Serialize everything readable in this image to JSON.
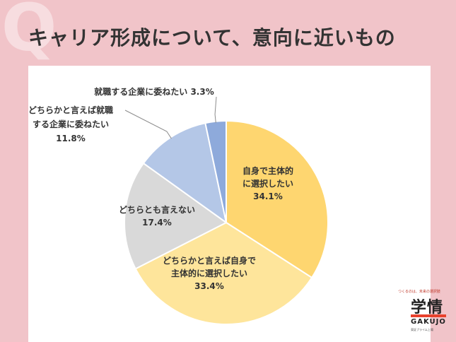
{
  "header": {
    "q_letter": "Q",
    "title": "キャリア形成について、意向に近いもの"
  },
  "logo": {
    "tagline": "つくるのは、未来の選択肢",
    "name": "学情",
    "name_en": "GAKUJO",
    "sub": "東証プライム上場"
  },
  "chart_data": {
    "type": "pie",
    "title": "キャリア形成について、意向に近いもの",
    "start_angle_deg": 0,
    "direction": "clockwise",
    "slices": [
      {
        "label": "自身で主体的に選択したい",
        "lines": [
          "自身で主体的",
          "に選択したい"
        ],
        "value": 34.1,
        "value_text": "34.1%",
        "color": "#fed670"
      },
      {
        "label": "どちらかと言えば自身で主体的に選択したい",
        "lines": [
          "どちらかと言えば自身で",
          "主体的に選択したい"
        ],
        "value": 33.4,
        "value_text": "33.4%",
        "color": "#fee59b"
      },
      {
        "label": "どちらとも言えない",
        "lines": [
          "どちらとも言えない"
        ],
        "value": 17.4,
        "value_text": "17.4%",
        "color": "#d9d9d9"
      },
      {
        "label": "どちらかと言えば就職する企業に委ねたい",
        "lines": [
          "どちらかと言えば就職",
          "する企業に委ねたい"
        ],
        "value": 11.8,
        "value_text": "11.8%",
        "color": "#b4c7e7"
      },
      {
        "label": "就職する企業に委ねたい",
        "lines": [
          "就職する企業に委ねたい 3.3%"
        ],
        "value": 3.3,
        "value_text": "",
        "color": "#8eaadb"
      }
    ]
  }
}
